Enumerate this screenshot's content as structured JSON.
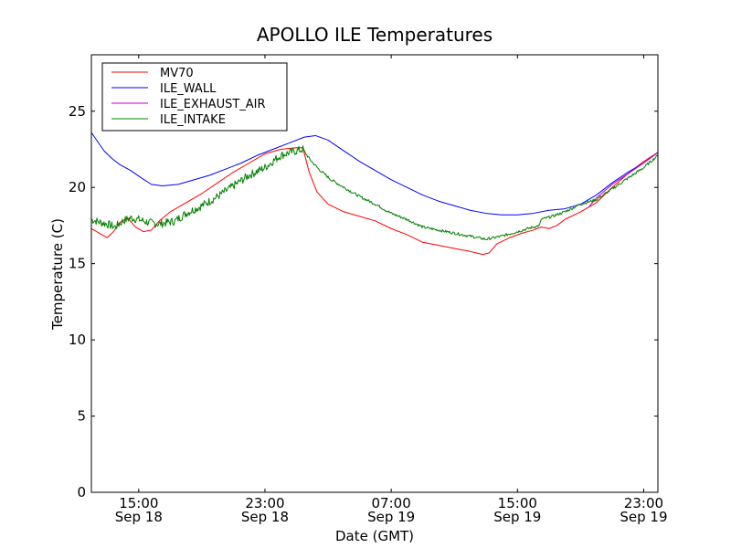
{
  "chart_data": {
    "type": "line",
    "title": "APOLLO ILE Temperatures",
    "xlabel": "Date (GMT)",
    "ylabel": "Temperature (C)",
    "xlim_hours": [
      12.0,
      23.9
    ],
    "xlim_days": [
      0,
      1
    ],
    "ylim": [
      0,
      28.7
    ],
    "yticks": [
      0,
      5,
      10,
      15,
      20,
      25
    ],
    "xticks": [
      {
        "t": 15,
        "time": "15:00",
        "date": "Sep 18"
      },
      {
        "t": 23,
        "time": "23:00",
        "date": "Sep 18"
      },
      {
        "t": 31,
        "time": "07:00",
        "date": "Sep 19"
      },
      {
        "t": 39,
        "time": "15:00",
        "date": "Sep 19"
      },
      {
        "t": 47,
        "time": "23:00",
        "date": "Sep 19"
      }
    ],
    "x_start": 12.0,
    "x_end": 47.9,
    "legend_position": "top-left",
    "series": [
      {
        "name": "MV70",
        "color": "#ff0000",
        "points": [
          [
            12.0,
            17.3
          ],
          [
            12.5,
            17.0
          ],
          [
            13.0,
            16.7
          ],
          [
            13.4,
            17.1
          ],
          [
            13.8,
            17.7
          ],
          [
            14.3,
            18.0
          ],
          [
            14.8,
            17.4
          ],
          [
            15.3,
            17.1
          ],
          [
            15.8,
            17.2
          ],
          [
            16.3,
            17.8
          ],
          [
            17.0,
            18.4
          ],
          [
            18.0,
            19.0
          ],
          [
            19.0,
            19.6
          ],
          [
            20.0,
            20.3
          ],
          [
            21.0,
            21.0
          ],
          [
            22.0,
            21.6
          ],
          [
            23.0,
            22.2
          ],
          [
            24.0,
            22.5
          ],
          [
            25.0,
            22.6
          ],
          [
            25.4,
            22.6
          ],
          [
            25.8,
            21.0
          ],
          [
            26.3,
            19.7
          ],
          [
            27.0,
            18.9
          ],
          [
            28.0,
            18.4
          ],
          [
            29.0,
            18.1
          ],
          [
            30.0,
            17.8
          ],
          [
            31.0,
            17.3
          ],
          [
            32.0,
            16.9
          ],
          [
            33.0,
            16.4
          ],
          [
            34.0,
            16.2
          ],
          [
            35.0,
            16.0
          ],
          [
            36.0,
            15.8
          ],
          [
            36.8,
            15.6
          ],
          [
            37.2,
            15.7
          ],
          [
            37.7,
            16.3
          ],
          [
            38.5,
            16.7
          ],
          [
            39.3,
            17.0
          ],
          [
            40.0,
            17.2
          ],
          [
            40.5,
            17.4
          ],
          [
            41.0,
            17.3
          ],
          [
            41.5,
            17.5
          ],
          [
            42.0,
            17.9
          ],
          [
            43.0,
            18.4
          ],
          [
            44.0,
            19.0
          ],
          [
            45.0,
            20.0
          ],
          [
            46.0,
            20.9
          ],
          [
            47.0,
            21.7
          ],
          [
            47.9,
            22.3
          ]
        ]
      },
      {
        "name": "ILE_WALL",
        "color": "#0000ff",
        "points": [
          [
            12.0,
            23.6
          ],
          [
            12.4,
            23.0
          ],
          [
            12.8,
            22.4
          ],
          [
            13.3,
            21.9
          ],
          [
            13.8,
            21.5
          ],
          [
            14.5,
            21.1
          ],
          [
            15.2,
            20.6
          ],
          [
            15.8,
            20.2
          ],
          [
            16.5,
            20.1
          ],
          [
            17.5,
            20.2
          ],
          [
            18.5,
            20.5
          ],
          [
            19.5,
            20.8
          ],
          [
            20.5,
            21.2
          ],
          [
            21.5,
            21.6
          ],
          [
            22.5,
            22.1
          ],
          [
            23.5,
            22.5
          ],
          [
            24.5,
            22.9
          ],
          [
            25.5,
            23.3
          ],
          [
            26.2,
            23.4
          ],
          [
            27.0,
            23.1
          ],
          [
            28.0,
            22.4
          ],
          [
            29.0,
            21.7
          ],
          [
            30.0,
            21.1
          ],
          [
            31.0,
            20.5
          ],
          [
            32.0,
            20.0
          ],
          [
            33.0,
            19.5
          ],
          [
            34.0,
            19.1
          ],
          [
            35.0,
            18.8
          ],
          [
            36.0,
            18.5
          ],
          [
            37.0,
            18.3
          ],
          [
            38.0,
            18.2
          ],
          [
            39.0,
            18.2
          ],
          [
            40.0,
            18.3
          ],
          [
            41.0,
            18.5
          ],
          [
            42.0,
            18.6
          ],
          [
            43.0,
            18.9
          ],
          [
            44.0,
            19.5
          ],
          [
            45.0,
            20.3
          ],
          [
            46.0,
            21.0
          ],
          [
            47.0,
            21.6
          ],
          [
            47.9,
            22.3
          ]
        ]
      },
      {
        "name": "ILE_EXHAUST_AIR",
        "color": "#bf00bf",
        "points": [
          [
            43.5,
            18.7
          ],
          [
            44.0,
            19.3
          ],
          [
            45.0,
            20.2
          ],
          [
            46.0,
            20.9
          ],
          [
            47.0,
            21.6
          ],
          [
            47.9,
            22.3
          ]
        ]
      },
      {
        "name": "ILE_INTAKE",
        "color": "#008000",
        "points": [
          [
            12.0,
            17.9
          ],
          [
            12.6,
            17.7
          ],
          [
            13.0,
            17.6
          ],
          [
            13.5,
            17.4
          ],
          [
            14.0,
            17.8
          ],
          [
            14.5,
            18.0
          ],
          [
            15.0,
            17.9
          ],
          [
            15.6,
            17.7
          ],
          [
            16.3,
            17.6
          ],
          [
            16.8,
            17.7
          ],
          [
            17.3,
            17.8
          ],
          [
            18.0,
            18.3
          ],
          [
            19.0,
            18.8
          ],
          [
            20.0,
            19.4
          ],
          [
            21.0,
            20.1
          ],
          [
            22.0,
            20.8
          ],
          [
            23.0,
            21.3
          ],
          [
            23.6,
            21.8
          ],
          [
            24.0,
            22.1
          ],
          [
            24.6,
            22.3
          ],
          [
            25.4,
            22.5
          ],
          [
            25.8,
            21.9
          ],
          [
            26.4,
            21.2
          ],
          [
            27.2,
            20.5
          ],
          [
            28.0,
            20.0
          ],
          [
            29.0,
            19.4
          ],
          [
            30.0,
            18.9
          ],
          [
            31.0,
            18.3
          ],
          [
            32.0,
            17.9
          ],
          [
            33.0,
            17.4
          ],
          [
            34.0,
            17.2
          ],
          [
            35.0,
            17.0
          ],
          [
            36.0,
            16.8
          ],
          [
            37.0,
            16.6
          ],
          [
            38.0,
            16.8
          ],
          [
            39.0,
            17.1
          ],
          [
            40.0,
            17.4
          ],
          [
            40.4,
            17.5
          ],
          [
            40.5,
            17.9
          ],
          [
            41.2,
            18.1
          ],
          [
            42.0,
            18.4
          ],
          [
            43.0,
            18.9
          ],
          [
            44.0,
            19.2
          ],
          [
            45.0,
            19.9
          ],
          [
            46.0,
            20.6
          ],
          [
            47.0,
            21.3
          ],
          [
            47.9,
            22.1
          ]
        ]
      }
    ]
  }
}
